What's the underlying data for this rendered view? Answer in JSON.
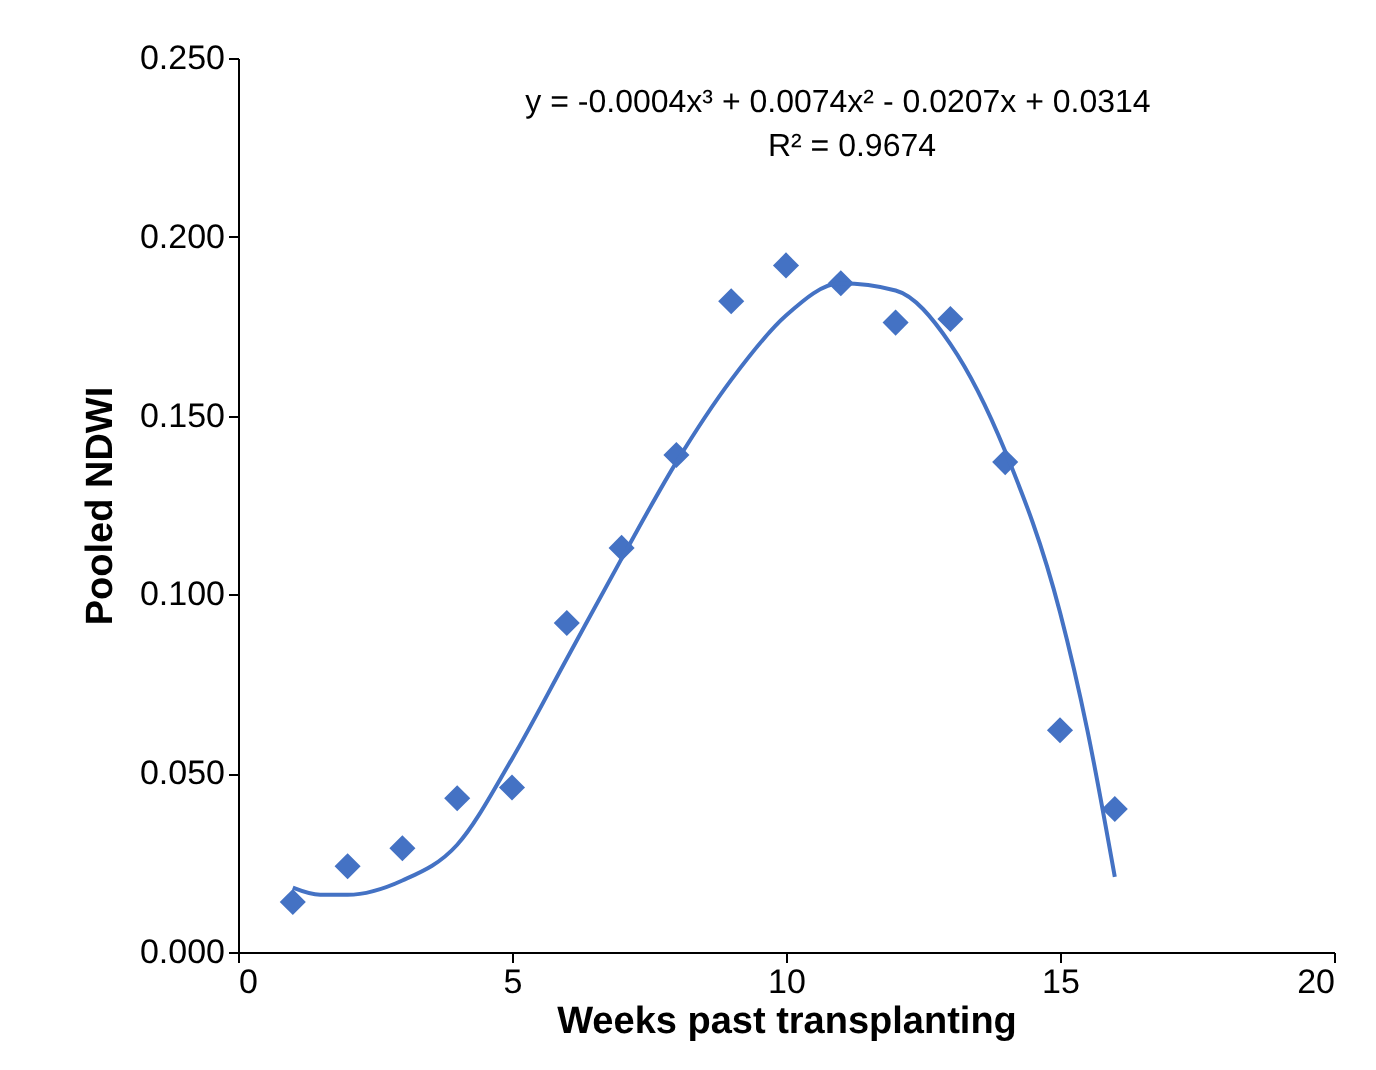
{
  "chart_data": {
    "type": "scatter",
    "xlabel": "Weeks past transplanting",
    "ylabel": "Pooled NDWI",
    "xlim": [
      0,
      20
    ],
    "xticks": [
      0,
      5,
      10,
      15,
      20
    ],
    "ylim": [
      0,
      0.25
    ],
    "yticks": [
      {
        "value": 0,
        "label": "0.000"
      },
      {
        "value": 0.05,
        "label": "0.050"
      },
      {
        "value": 0.1,
        "label": "0.100"
      },
      {
        "value": 0.15,
        "label": "0.150"
      },
      {
        "value": 0.2,
        "label": "0.200"
      },
      {
        "value": 0.25,
        "label": "0.250"
      }
    ],
    "grid": false,
    "annotations": [
      "y = -0.0004x³  + 0.0074x²  - 0.0207x  + 0.0314",
      "R² = 0.9674"
    ],
    "series": [
      {
        "color": "#4472c4",
        "marker": "diamond",
        "x": [
          1,
          2,
          3,
          4,
          5,
          6,
          7,
          8,
          9,
          10,
          11,
          12,
          13,
          14,
          15,
          16
        ],
        "values": [
          0.014,
          0.024,
          0.029,
          0.043,
          0.046,
          0.092,
          0.113,
          0.139,
          0.182,
          0.192,
          0.187,
          0.176,
          0.177,
          0.137,
          0.062,
          0.04
        ]
      },
      {
        "type": "line",
        "color": "#4472c4",
        "line_style": "solid",
        "x": [
          1,
          1.5,
          2,
          3,
          4,
          5,
          6,
          7,
          8,
          9,
          10,
          11,
          12,
          13,
          14,
          15,
          15.5,
          16
        ],
        "values": [
          0.018,
          0.016,
          0.016,
          0.02,
          0.03,
          0.054,
          0.082,
          0.11,
          0.137,
          0.16,
          0.178,
          0.187,
          0.185,
          0.17,
          0.14,
          0.095,
          0.062,
          0.021
        ]
      }
    ]
  }
}
